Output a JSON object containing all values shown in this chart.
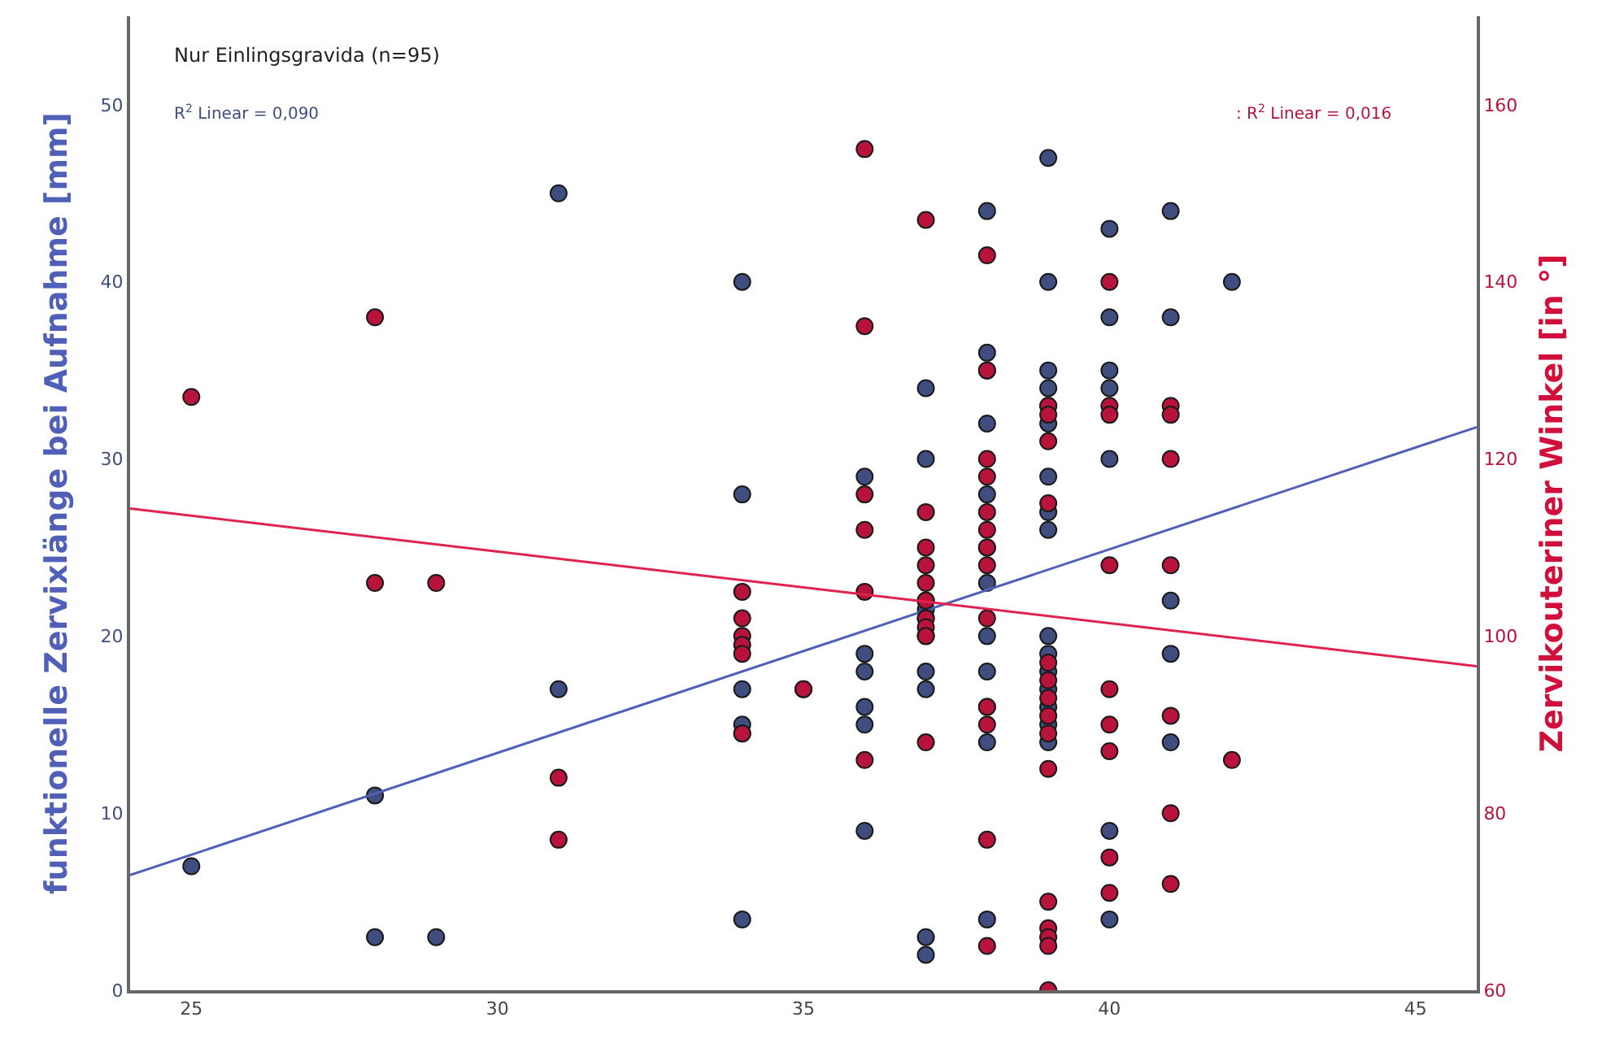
{
  "chart_data": {
    "type": "scatter",
    "ylabel": "funktionelle Zervixlänge bei Aufnahme [mm]",
    "y2label": "Zervikouteriner Winkel [in °]",
    "annotations": [
      "Nur Einlingsgravida (n=95)",
      "R$^{2}$ Linear = 0,090",
      ": R$^{2}$ Linear = 0,016"
    ],
    "xlim": [
      24,
      46
    ],
    "xticks": [
      25,
      30,
      35,
      40,
      45
    ],
    "ylim": [
      0,
      55
    ],
    "yticks": [
      0,
      10,
      20,
      30,
      40,
      50
    ],
    "y2lim": [
      60,
      170
    ],
    "y2ticks": [
      60,
      80,
      100,
      120,
      140,
      160
    ],
    "series": [
      {
        "marker": "circle",
        "color": "#3f4e7e",
        "x": [
          25,
          28,
          28,
          29,
          31,
          31,
          34,
          34,
          34,
          34,
          34,
          34,
          35,
          36,
          36,
          36,
          36,
          36,
          36,
          37,
          37,
          37,
          37,
          37,
          37,
          37,
          37,
          37,
          37,
          38,
          38,
          38,
          38,
          38,
          38,
          38,
          38,
          38,
          38,
          38,
          38,
          39,
          39,
          39,
          39,
          39,
          39,
          39,
          39,
          39,
          39,
          39,
          39,
          39,
          39,
          39,
          39,
          40,
          40,
          40,
          40,
          40,
          40,
          40,
          41,
          41,
          41,
          41,
          41,
          42
        ],
        "values": [
          7,
          11,
          3,
          3,
          45,
          17,
          40,
          28,
          17,
          15,
          14.5,
          4,
          17,
          29,
          19,
          18,
          16,
          15,
          9,
          34,
          30,
          22,
          21.5,
          21,
          20,
          18,
          17,
          3,
          2,
          44,
          36,
          35,
          32,
          28,
          25,
          23,
          20,
          18,
          16,
          14,
          4,
          47,
          40,
          35,
          34,
          33,
          32,
          29,
          27,
          26,
          20,
          19,
          18,
          17,
          16,
          15,
          14,
          43,
          38,
          35,
          34,
          30,
          9,
          4,
          44,
          38,
          22,
          19,
          14,
          40
        ]
      },
      {
        "marker": "circle",
        "axis": "y2",
        "color": "#b8133a",
        "x": [
          25,
          28,
          28,
          29,
          31,
          31,
          34,
          34,
          34,
          34,
          34,
          34,
          35,
          36,
          36,
          36,
          36,
          36,
          36,
          37,
          37,
          37,
          37,
          37,
          37,
          37,
          37,
          37,
          37,
          38,
          38,
          38,
          38,
          38,
          38,
          38,
          38,
          38,
          38,
          38,
          38,
          38,
          39,
          39,
          39,
          39,
          39,
          39,
          39,
          39,
          39,
          39,
          39,
          39,
          39,
          39,
          39,
          40,
          40,
          40,
          40,
          40,
          40,
          40,
          40,
          40,
          41,
          41,
          41,
          41,
          41,
          41,
          41,
          42
        ],
        "values": [
          127,
          136,
          106,
          106,
          84,
          77,
          105,
          102,
          100,
          99,
          98,
          89,
          94,
          155,
          135,
          116,
          112,
          105,
          86,
          147,
          114,
          110,
          108,
          106,
          104,
          102,
          101,
          100,
          88,
          143,
          130,
          120,
          118,
          114,
          112,
          110,
          108,
          102,
          92,
          90,
          77,
          65,
          126,
          125,
          122,
          115,
          97,
          95,
          93,
          91,
          89,
          85,
          70,
          67,
          66,
          65,
          60,
          140,
          126,
          125,
          108,
          94,
          90,
          87,
          75,
          71,
          126,
          125,
          120,
          108,
          91,
          80,
          72,
          86
        ]
      },
      {
        "type": "line",
        "marker": "none",
        "color": "#5060b8",
        "x": [
          24,
          46
        ],
        "values": [
          6.5,
          31.8
        ]
      },
      {
        "type": "line",
        "marker": "none",
        "axis": "y2",
        "color": "#e0244f",
        "x": [
          24,
          46
        ],
        "values": [
          114.4,
          96.6
        ]
      }
    ]
  }
}
